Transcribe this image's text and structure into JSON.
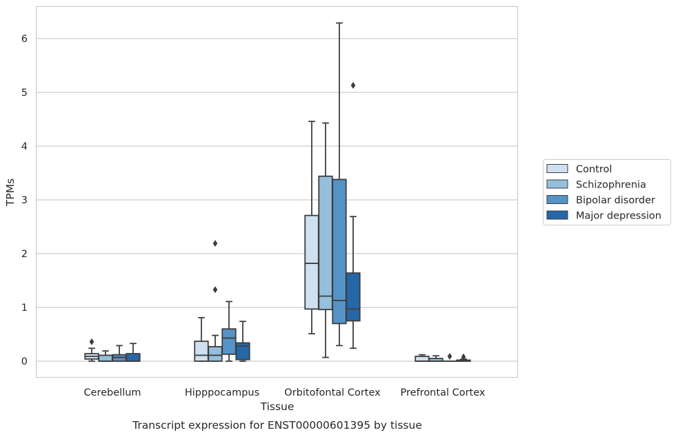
{
  "caption": "Transcript expression for ENST00000601395 by tissue",
  "chart_data": {
    "type": "box",
    "xlabel": "Tissue",
    "ylabel": "TPMs",
    "ylim": [
      -0.3,
      6.6
    ],
    "yticks": [
      0,
      1,
      2,
      3,
      4,
      5,
      6
    ],
    "grid": "horizontal",
    "legend_position": "right",
    "categories": [
      "Cerebellum",
      "Hipppocampus",
      "Orbitofontal Cortex",
      "Prefrontal Cortex"
    ],
    "series": [
      {
        "name": "Control",
        "color": "#cfe0f0",
        "boxes": [
          {
            "whislo": 0.0,
            "q1": 0.04,
            "med": 0.09,
            "q3": 0.14,
            "whishi": 0.24,
            "fliers": [
              0.36
            ]
          },
          {
            "whislo": 0.0,
            "q1": 0.0,
            "med": 0.11,
            "q3": 0.37,
            "whishi": 0.81,
            "fliers": []
          },
          {
            "whislo": 0.51,
            "q1": 0.97,
            "med": 1.82,
            "q3": 2.71,
            "whishi": 4.46,
            "fliers": []
          },
          {
            "whislo": 0.0,
            "q1": 0.0,
            "med": 0.0,
            "q3": 0.09,
            "whishi": 0.12,
            "fliers": []
          }
        ]
      },
      {
        "name": "Schizophrenia",
        "color": "#95bfdb",
        "boxes": [
          {
            "whislo": 0.0,
            "q1": 0.0,
            "med": 0.0,
            "q3": 0.11,
            "whishi": 0.19,
            "fliers": []
          },
          {
            "whislo": 0.0,
            "q1": 0.0,
            "med": 0.11,
            "q3": 0.27,
            "whishi": 0.48,
            "fliers": [
              1.33,
              2.19
            ]
          },
          {
            "whislo": 0.07,
            "q1": 0.96,
            "med": 1.21,
            "q3": 3.44,
            "whishi": 4.43,
            "fliers": []
          },
          {
            "whislo": 0.0,
            "q1": 0.0,
            "med": 0.0,
            "q3": 0.05,
            "whishi": 0.1,
            "fliers": []
          }
        ]
      },
      {
        "name": "Bipolar disorder",
        "color": "#5593c6",
        "boxes": [
          {
            "whislo": 0.0,
            "q1": 0.0,
            "med": 0.07,
            "q3": 0.12,
            "whishi": 0.29,
            "fliers": []
          },
          {
            "whislo": 0.0,
            "q1": 0.13,
            "med": 0.43,
            "q3": 0.6,
            "whishi": 1.11,
            "fliers": []
          },
          {
            "whislo": 0.29,
            "q1": 0.7,
            "med": 1.13,
            "q3": 3.38,
            "whishi": 6.29,
            "fliers": []
          },
          {
            "whislo": 0.0,
            "q1": 0.0,
            "med": 0.0,
            "q3": 0.0,
            "whishi": 0.0,
            "fliers": [
              0.09
            ]
          }
        ]
      },
      {
        "name": "Major depression",
        "color": "#2667a8",
        "boxes": [
          {
            "whislo": 0.0,
            "q1": 0.0,
            "med": 0.0,
            "q3": 0.14,
            "whishi": 0.33,
            "fliers": []
          },
          {
            "whislo": 0.0,
            "q1": 0.03,
            "med": 0.28,
            "q3": 0.34,
            "whishi": 0.74,
            "fliers": []
          },
          {
            "whislo": 0.24,
            "q1": 0.75,
            "med": 0.97,
            "q3": 1.64,
            "whishi": 2.69,
            "fliers": [
              5.13
            ]
          },
          {
            "whislo": 0.0,
            "q1": 0.0,
            "med": 0.0,
            "q3": 0.02,
            "whishi": 0.04,
            "fliers": [
              0.08
            ]
          }
        ]
      }
    ]
  }
}
